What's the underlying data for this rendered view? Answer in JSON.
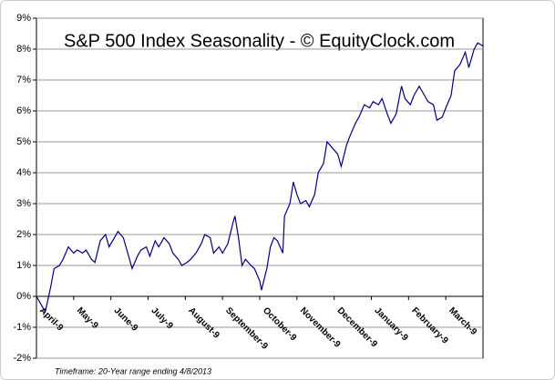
{
  "chart_data": {
    "type": "line",
    "title": "S&P 500 Index Seasonality - © EquityClock.com",
    "footnote": "Timeframe: 20-Year range ending 4/8/2013",
    "x": [
      0,
      3,
      5,
      8,
      10,
      13,
      15,
      18,
      21,
      23,
      26,
      28,
      31,
      33,
      36,
      39,
      41,
      44,
      46,
      49,
      51,
      54,
      57,
      59,
      62,
      64,
      67,
      69,
      72,
      75,
      77,
      80,
      82,
      85,
      87,
      90,
      93,
      95,
      98,
      100,
      103,
      105,
      108,
      111,
      112,
      114,
      116,
      118,
      121,
      123,
      126,
      127,
      130,
      132,
      134,
      136,
      139,
      140,
      143,
      145,
      147,
      149,
      152,
      154,
      157,
      159,
      162,
      164,
      167,
      170,
      172,
      175,
      177,
      180,
      182,
      185,
      188,
      190,
      193,
      195,
      198,
      200,
      203,
      206,
      208,
      211,
      213,
      216,
      219,
      221,
      224,
      226,
      229,
      231,
      234,
      236,
      239,
      242,
      244,
      247,
      249,
      252
    ],
    "series": [
      {
        "name": "S&P 500",
        "color": "#000080",
        "values": [
          0,
          -0.3,
          -0.5,
          0.3,
          0.9,
          1.0,
          1.2,
          1.6,
          1.4,
          1.5,
          1.4,
          1.5,
          1.2,
          1.1,
          1.8,
          2.0,
          1.6,
          1.9,
          2.1,
          1.9,
          1.5,
          0.9,
          1.3,
          1.5,
          1.6,
          1.3,
          1.8,
          1.6,
          1.9,
          1.7,
          1.4,
          1.2,
          1.0,
          1.1,
          1.2,
          1.4,
          1.7,
          2.0,
          1.9,
          1.4,
          1.6,
          1.4,
          1.7,
          2.4,
          2.6,
          1.9,
          1.0,
          1.2,
          1.0,
          0.9,
          0.5,
          0.2,
          0.9,
          1.6,
          1.9,
          1.8,
          1.4,
          2.6,
          3.0,
          3.7,
          3.3,
          3.0,
          3.1,
          2.9,
          3.3,
          4.0,
          4.3,
          5.0,
          4.8,
          4.6,
          4.2,
          4.9,
          5.2,
          5.6,
          5.8,
          6.2,
          6.1,
          6.3,
          6.2,
          6.4,
          5.9,
          5.6,
          5.9,
          6.8,
          6.4,
          6.2,
          6.5,
          6.8,
          6.5,
          6.3,
          6.2,
          5.7,
          5.8,
          6.1,
          6.5,
          7.3,
          7.5,
          7.9,
          7.4,
          8.0,
          8.2,
          8.1
        ]
      }
    ],
    "xlim": [
      0,
      252
    ],
    "xticks": [
      {
        "value": 0,
        "label": "April-9"
      },
      {
        "value": 21,
        "label": "May-9"
      },
      {
        "value": 42,
        "label": "June-9"
      },
      {
        "value": 63,
        "label": "July-9"
      },
      {
        "value": 84,
        "label": "August-9"
      },
      {
        "value": 105,
        "label": "September-9"
      },
      {
        "value": 126,
        "label": "October-9"
      },
      {
        "value": 147,
        "label": "November-9"
      },
      {
        "value": 168,
        "label": "December-9"
      },
      {
        "value": 189,
        "label": "January-9"
      },
      {
        "value": 210,
        "label": "February-9"
      },
      {
        "value": 231,
        "label": "March-9"
      }
    ],
    "ylim": [
      -2,
      9
    ],
    "yticks": [
      {
        "value": -2,
        "label": "-2%"
      },
      {
        "value": -1,
        "label": "-1%"
      },
      {
        "value": 0,
        "label": "0%"
      },
      {
        "value": 1,
        "label": "1%"
      },
      {
        "value": 2,
        "label": "2%"
      },
      {
        "value": 3,
        "label": "3%"
      },
      {
        "value": 4,
        "label": "4%"
      },
      {
        "value": 5,
        "label": "5%"
      },
      {
        "value": 6,
        "label": "6%"
      },
      {
        "value": 7,
        "label": "7%"
      },
      {
        "value": 8,
        "label": "8%"
      },
      {
        "value": 9,
        "label": "9%"
      }
    ],
    "grid": true
  }
}
